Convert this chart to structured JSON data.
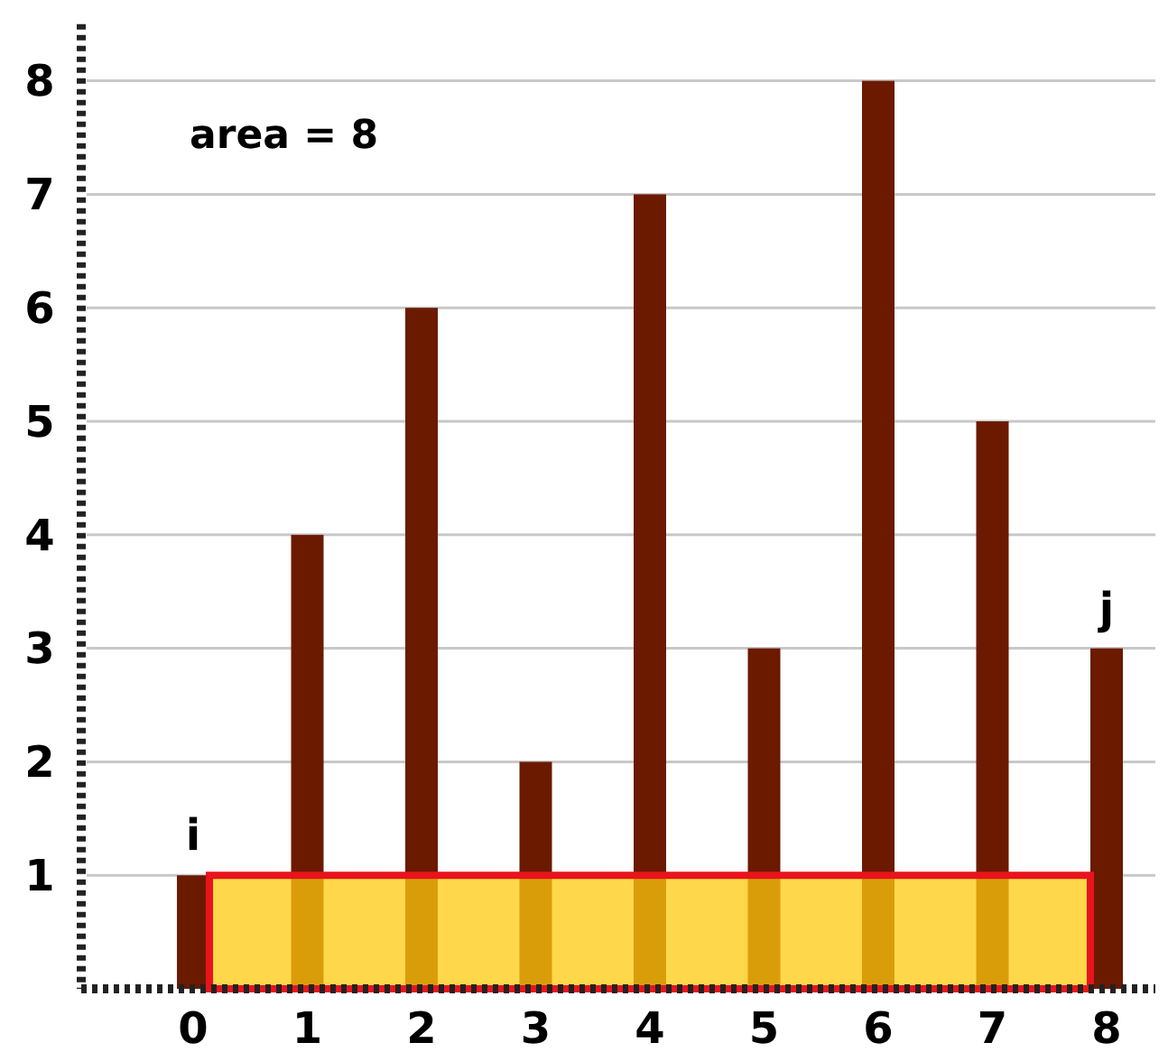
{
  "chart_data": {
    "type": "bar",
    "categories": [
      "0",
      "1",
      "2",
      "3",
      "4",
      "5",
      "6",
      "7",
      "8"
    ],
    "values": [
      1,
      4,
      6,
      2,
      7,
      3,
      8,
      5,
      3
    ],
    "color": "#6b1a00",
    "ylim": [
      0,
      8.5
    ],
    "yticks": [
      1,
      2,
      3,
      4,
      5,
      6,
      7,
      8
    ],
    "grid": "y",
    "bands": [
      {
        "axis": "y",
        "from": 0,
        "to": 1,
        "color": "#ffc90e"
      }
    ],
    "annotations": [
      "area = 8",
      {
        "text": "i",
        "x": "0",
        "y": 1
      },
      {
        "text": "j",
        "x": "8",
        "y": 3
      }
    ]
  }
}
